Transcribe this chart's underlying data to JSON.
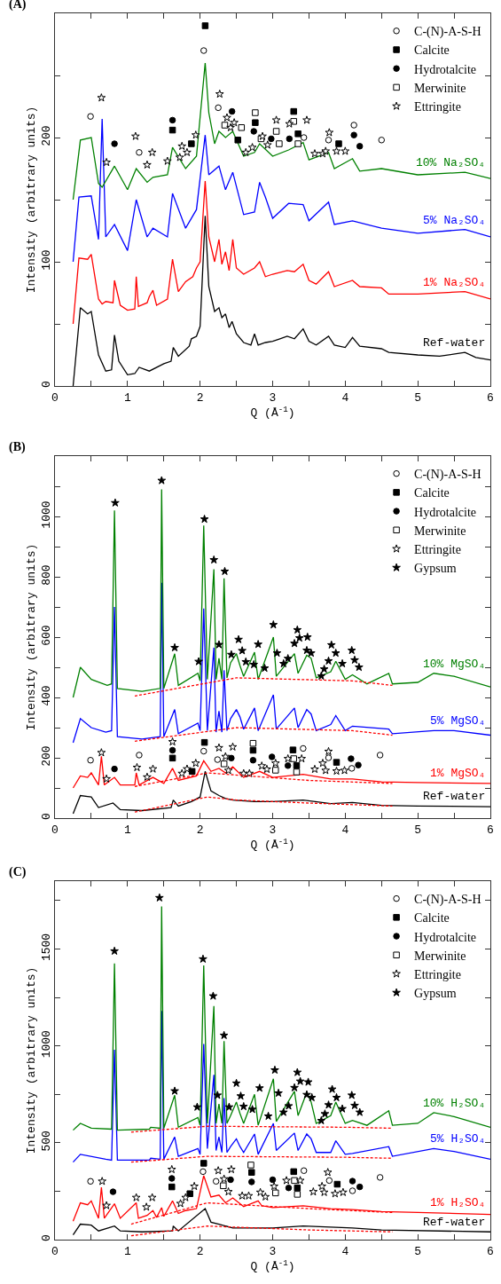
{
  "chart_data": [
    {
      "type": "line",
      "title": "(A)",
      "xlabel": "Q (Å$^{-1}$)",
      "ylabel": "Intensity (arbitrary units)",
      "xlim": [
        0,
        6
      ],
      "xticks": [
        0,
        {
          "value": 0.5,
          "label": null
        },
        1,
        {
          "value": 1.5,
          "label": null
        },
        2,
        {
          "value": 2.5,
          "label": null
        },
        3,
        {
          "value": 3.5,
          "label": null
        },
        4,
        {
          "value": 4.5,
          "label": null
        },
        5,
        {
          "value": 5.5,
          "label": null
        },
        6
      ],
      "ylim": [
        0,
        300
      ],
      "yticks": [
        0,
        {
          "value": 50,
          "label": null
        },
        100,
        {
          "value": 150,
          "label": null
        },
        200,
        {
          "value": 250,
          "label": null
        }
      ],
      "grid": false,
      "legend": "top right",
      "series": [
        {
          "name": "Ref-water",
          "color": "#000000",
          "x": [
            0.25,
            0.35,
            0.45,
            0.5,
            0.6,
            0.7,
            0.78,
            0.82,
            0.88,
            1.0,
            1.1,
            1.16,
            1.3,
            1.5,
            1.6,
            1.63,
            1.7,
            1.85,
            1.88,
            1.95,
            2.0,
            2.07,
            2.12,
            2.2,
            2.26,
            2.3,
            2.35,
            2.4,
            2.44,
            2.5,
            2.6,
            2.7,
            2.75,
            2.8,
            2.9,
            3.0,
            3.1,
            3.2,
            3.3,
            3.42,
            3.5,
            3.6,
            3.77,
            3.85,
            4.0,
            4.1,
            4.2,
            4.5,
            4.6,
            5.0,
            5.3,
            5.65,
            5.8,
            6.0
          ],
          "values": [
            0,
            63,
            58,
            60,
            25,
            12,
            13,
            41,
            20,
            9,
            10,
            15,
            12,
            18,
            20,
            31,
            24,
            32,
            38,
            40,
            48,
            137,
            80,
            60,
            63,
            55,
            58,
            47,
            52,
            42,
            35,
            33,
            42,
            33,
            35,
            36,
            38,
            40,
            38,
            46,
            36,
            33,
            40,
            33,
            31,
            39,
            32,
            30,
            27,
            25,
            24,
            27,
            23,
            21
          ]
        },
        {
          "name": "1% Na₂SO₄",
          "color": "#ff0000",
          "x": [
            0.25,
            0.33,
            0.45,
            0.5,
            0.6,
            0.65,
            0.7,
            0.8,
            0.82,
            0.9,
            1.0,
            1.1,
            1.12,
            1.15,
            1.27,
            1.3,
            1.35,
            1.4,
            1.55,
            1.62,
            1.7,
            1.8,
            1.9,
            1.95,
            2.0,
            2.07,
            2.12,
            2.2,
            2.26,
            2.3,
            2.35,
            2.4,
            2.45,
            2.5,
            2.6,
            2.75,
            2.82,
            2.9,
            3.0,
            3.2,
            3.3,
            3.42,
            3.5,
            3.6,
            3.77,
            3.85,
            4.1,
            4.2,
            4.5,
            4.6,
            5.0,
            5.65,
            6.0
          ],
          "values": [
            50,
            103,
            102,
            106,
            70,
            66,
            68,
            67,
            85,
            65,
            61,
            62,
            88,
            64,
            67,
            72,
            77,
            65,
            70,
            102,
            76,
            84,
            88,
            95,
            100,
            165,
            120,
            100,
            118,
            98,
            108,
            93,
            118,
            95,
            90,
            95,
            100,
            88,
            90,
            93,
            92,
            98,
            85,
            82,
            92,
            80,
            85,
            80,
            79,
            74,
            74,
            76,
            70
          ]
        },
        {
          "name": "5% Na₂SO₄",
          "color": "#0000ff",
          "x": [
            0.25,
            0.33,
            0.5,
            0.6,
            0.65,
            0.7,
            0.82,
            1.0,
            1.12,
            1.27,
            1.35,
            1.55,
            1.62,
            1.8,
            1.95,
            2.07,
            2.12,
            2.26,
            2.35,
            2.45,
            2.6,
            2.75,
            2.82,
            2.9,
            3.0,
            3.22,
            3.42,
            3.5,
            3.77,
            3.85,
            4.1,
            4.5,
            5.0,
            5.65,
            6.0
          ],
          "values": [
            100,
            152,
            153,
            118,
            215,
            120,
            130,
            109,
            150,
            120,
            127,
            120,
            155,
            127,
            142,
            202,
            170,
            177,
            158,
            172,
            138,
            140,
            164,
            152,
            135,
            147,
            146,
            133,
            148,
            130,
            133,
            127,
            123,
            126,
            120
          ]
        },
        {
          "name": "10% Na₂SO₄",
          "color": "#008000",
          "x": [
            0.25,
            0.35,
            0.5,
            0.6,
            0.65,
            0.82,
            1.0,
            1.12,
            1.27,
            1.35,
            1.55,
            1.62,
            1.8,
            1.95,
            2.07,
            2.12,
            2.2,
            2.26,
            2.35,
            2.45,
            2.6,
            2.75,
            2.82,
            3.0,
            3.22,
            3.42,
            3.5,
            3.77,
            3.85,
            4.1,
            4.2,
            4.5,
            5.0,
            5.65,
            6.0
          ],
          "values": [
            150,
            198,
            200,
            163,
            160,
            177,
            158,
            175,
            164,
            168,
            170,
            192,
            175,
            185,
            260,
            220,
            195,
            205,
            200,
            205,
            185,
            188,
            195,
            185,
            190,
            196,
            182,
            188,
            175,
            183,
            173,
            175,
            170,
            172,
            167
          ]
        },
        {
          "type": "scatter",
          "name": "C-(N)-A-S-H",
          "marker": "circle",
          "color": "#ffffff",
          "x": [
            0.49,
            1.16,
            2.05,
            2.25,
            3.43,
            3.77,
            4.12,
            4.5
          ],
          "values": [
            217,
            188,
            270,
            224,
            200,
            198,
            210,
            198
          ]
        },
        {
          "type": "scatter",
          "name": "Calcite",
          "marker": "square",
          "color": "#000000",
          "x": [
            1.62,
            1.88,
            2.07,
            2.52,
            2.76,
            3.29,
            3.35,
            3.91
          ],
          "values": [
            206,
            195,
            290,
            198,
            212,
            221,
            203,
            195
          ]
        },
        {
          "type": "scatter",
          "name": "Hydrotalcite",
          "marker": "circle",
          "color": "#000000",
          "x": [
            0.82,
            1.62,
            2.44,
            2.74,
            2.98,
            3.23,
            4.12,
            4.2
          ],
          "values": [
            195,
            214,
            221,
            205,
            199,
            199,
            202,
            193
          ]
        },
        {
          "type": "scatter",
          "name": "Merwinite",
          "marker": "square",
          "color": "#ffffff",
          "x": [
            2.34,
            2.57,
            2.76,
            2.84,
            3.05,
            3.09,
            3.29,
            3.35
          ],
          "values": [
            210,
            208,
            220,
            199,
            205,
            195,
            213,
            195
          ]
        },
        {
          "type": "scatter",
          "name": "Ettringite",
          "marker": "star",
          "color": "#ffffff",
          "x": [
            0.64,
            0.71,
            1.11,
            1.27,
            1.34,
            1.55,
            1.72,
            1.75,
            1.82,
            1.94,
            2.27,
            2.37,
            2.42,
            2.47,
            2.63,
            2.72,
            2.86,
            2.93,
            3.05,
            3.23,
            3.47,
            3.58,
            3.69,
            3.73,
            3.78,
            3.88,
            4.0
          ],
          "values": [
            232,
            180,
            201,
            178,
            188,
            181,
            184,
            193,
            188,
            202,
            235,
            216,
            208,
            212,
            188,
            192,
            201,
            194,
            214,
            211,
            214,
            187,
            187,
            189,
            204,
            189,
            189
          ]
        }
      ]
    },
    {
      "type": "line",
      "title": "(B)",
      "xlabel": "Q (Å$^{-1}$)",
      "ylabel": "Intensity (arbitrary units)",
      "xlim": [
        0,
        6
      ],
      "xticks": [
        0,
        {
          "value": 0.5,
          "label": null
        },
        1,
        {
          "value": 1.5,
          "label": null
        },
        2,
        {
          "value": 2.5,
          "label": null
        },
        3,
        {
          "value": 3.5,
          "label": null
        },
        4,
        {
          "value": 4.5,
          "label": null
        },
        5,
        {
          "value": 5.5,
          "label": null
        },
        6
      ],
      "ylim": [
        0,
        1200
      ],
      "yticks": [
        0,
        {
          "value": 100,
          "label": null
        },
        200,
        {
          "value": 300,
          "label": null
        },
        400,
        {
          "value": 500,
          "label": null
        },
        600,
        {
          "value": 700,
          "label": null
        },
        800,
        {
          "value": 900,
          "label": null
        },
        1000,
        {
          "value": 1100,
          "label": null
        }
      ],
      "grid": false,
      "legend": "top right",
      "series": [
        {
          "type": "line",
          "color": "#ff0000",
          "line_style": "dotted",
          "x": [
            1.1,
            2.1,
            2.5,
            3.5,
            4.65
          ],
          "values": [
            20,
            70,
            60,
            50,
            40
          ]
        },
        {
          "type": "line",
          "color": "#ff0000",
          "line_style": "dotted",
          "x": [
            1.1,
            2.1,
            3.5,
            4.65
          ],
          "values": [
            105,
            150,
            125,
            115
          ]
        },
        {
          "type": "line",
          "color": "#ff0000",
          "line_style": "dotted",
          "x": [
            1.1,
            2.5,
            4.1,
            4.65
          ],
          "values": [
            255,
            300,
            290,
            275
          ]
        },
        {
          "type": "line",
          "color": "#ff0000",
          "line_style": "dotted",
          "x": [
            1.1,
            2.5,
            4.1,
            4.65
          ],
          "values": [
            405,
            465,
            455,
            440
          ]
        },
        {
          "name": "Ref-water",
          "color": "#000000",
          "x": [
            0.25,
            0.35,
            0.45,
            0.5,
            0.6,
            0.8,
            0.9,
            1.2,
            1.6,
            1.63,
            1.7,
            1.88,
            2.0,
            2.07,
            2.15,
            2.26,
            2.35,
            2.45,
            2.75,
            3.0,
            3.42,
            3.8,
            4.1,
            4.5,
            5.0,
            6.0
          ],
          "values": [
            15,
            75,
            72,
            70,
            35,
            50,
            28,
            25,
            35,
            60,
            40,
            55,
            70,
            155,
            90,
            75,
            65,
            60,
            55,
            55,
            60,
            48,
            52,
            42,
            40,
            38
          ]
        },
        {
          "name": "1% MgSO₄",
          "color": "#ff0000",
          "x": [
            0.25,
            0.35,
            0.45,
            0.5,
            0.6,
            0.64,
            0.68,
            0.82,
            0.9,
            1.1,
            1.12,
            1.16,
            1.35,
            1.5,
            1.62,
            1.7,
            1.95,
            2.05,
            2.15,
            2.26,
            2.35,
            2.45,
            2.6,
            2.82,
            3.0,
            3.42,
            3.8,
            4.1,
            4.5,
            5.0,
            6.0
          ],
          "values": [
            100,
            140,
            135,
            150,
            110,
            205,
            110,
            135,
            110,
            110,
            150,
            110,
            135,
            115,
            165,
            125,
            140,
            190,
            155,
            165,
            150,
            170,
            135,
            155,
            135,
            145,
            130,
            130,
            120,
            118,
            115
          ]
        },
        {
          "name": "5% MgSO₄",
          "color": "#0000ff",
          "x": [
            0.25,
            0.35,
            0.5,
            0.7,
            0.78,
            0.82,
            0.86,
            1.2,
            1.45,
            1.47,
            1.5,
            1.65,
            1.7,
            1.97,
            2.0,
            2.05,
            2.1,
            2.19,
            2.22,
            2.26,
            2.3,
            2.33,
            2.37,
            2.42,
            2.5,
            2.55,
            2.6,
            2.75,
            2.8,
            3.01,
            3.05,
            3.3,
            3.35,
            3.47,
            3.53,
            3.6,
            3.8,
            3.87,
            4.0,
            4.1,
            4.6,
            4.65,
            5.22,
            5.5,
            6.0
          ],
          "values": [
            250,
            330,
            300,
            285,
            290,
            700,
            270,
            262,
            270,
            780,
            270,
            360,
            280,
            315,
            290,
            695,
            290,
            565,
            285,
            355,
            285,
            490,
            290,
            330,
            360,
            335,
            295,
            365,
            290,
            409,
            295,
            365,
            300,
            360,
            345,
            290,
            310,
            340,
            290,
            305,
            295,
            280,
            290,
            290,
            275
          ]
        },
        {
          "name": "10% MgSO₄",
          "color": "#008000",
          "x": [
            0.25,
            0.35,
            0.5,
            0.72,
            0.78,
            0.82,
            0.86,
            1.2,
            1.45,
            1.47,
            1.5,
            1.65,
            1.7,
            1.97,
            2.0,
            2.05,
            2.1,
            2.19,
            2.22,
            2.26,
            2.3,
            2.33,
            2.37,
            2.42,
            2.5,
            2.55,
            2.6,
            2.75,
            2.8,
            3.01,
            3.05,
            3.3,
            3.35,
            3.47,
            3.53,
            3.6,
            3.8,
            3.87,
            4.0,
            4.1,
            4.3,
            4.6,
            4.65,
            5.0,
            5.22,
            5.5,
            6.0
          ],
          "values": [
            400,
            500,
            460,
            440,
            445,
            1020,
            430,
            420,
            430,
            1090,
            430,
            545,
            440,
            480,
            455,
            970,
            460,
            825,
            460,
            530,
            460,
            795,
            465,
            515,
            545,
            505,
            470,
            550,
            460,
            600,
            470,
            545,
            480,
            540,
            530,
            465,
            485,
            520,
            460,
            475,
            445,
            480,
            445,
            450,
            480,
            470,
            435
          ]
        },
        {
          "type": "scatter",
          "name": "C-(N)-A-S-H",
          "marker": "circle",
          "color": "#ffffff",
          "x": [
            0.49,
            1.16,
            2.05,
            2.24,
            3.42,
            3.77,
            4.09,
            4.48
          ],
          "values": [
            192,
            209,
            222,
            194,
            231,
            200,
            165,
            209
          ]
        },
        {
          "type": "scatter",
          "name": "Calcite",
          "marker": "square",
          "color": "#000000",
          "x": [
            1.62,
            1.89,
            2.06,
            2.73,
            3.28,
            3.33,
            3.88
          ],
          "values": [
            199,
            155,
            251,
            225,
            226,
            174,
            185
          ]
        },
        {
          "type": "scatter",
          "name": "Hydrotalcite",
          "marker": "circle",
          "color": "#000000",
          "x": [
            0.82,
            1.62,
            2.43,
            2.73,
            2.99,
            3.21,
            4.08,
            4.18
          ],
          "values": [
            163,
            225,
            199,
            192,
            203,
            174,
            197,
            176
          ]
        },
        {
          "type": "scatter",
          "name": "Merwinite",
          "marker": "square",
          "color": "#ffffff",
          "x": [
            2.33,
            2.73,
            3.04,
            3.29,
            3.33
          ],
          "values": [
            180,
            248,
            159,
            197,
            153
          ]
        },
        {
          "type": "scatter",
          "name": "Ettringite",
          "marker": "star",
          "color": "#ffffff",
          "x": [
            0.64,
            0.71,
            1.13,
            1.27,
            1.35,
            1.62,
            1.75,
            1.82,
            1.94,
            2.26,
            2.35,
            2.39,
            2.45,
            2.6,
            2.68,
            2.85,
            2.92,
            3.04,
            3.21,
            3.4,
            3.58,
            3.69,
            3.73,
            3.77,
            3.88,
            3.99
          ],
          "values": [
            217,
            130,
            168,
            136,
            163,
            253,
            148,
            163,
            182,
            233,
            204,
            158,
            236,
            148,
            148,
            173,
            162,
            182,
            197,
            197,
            162,
            182,
            158,
            221,
            156,
            158
          ]
        },
        {
          "type": "scatter",
          "name": "Gypsum",
          "marker": "star",
          "color": "#000000",
          "x": [
            0.83,
            1.47,
            1.65,
            1.98,
            2.06,
            2.19,
            2.26,
            2.34,
            2.43,
            2.53,
            2.58,
            2.63,
            2.74,
            2.8,
            2.89,
            3.01,
            3.06,
            3.15,
            3.21,
            3.3,
            3.34,
            3.37,
            3.47,
            3.48,
            3.53,
            3.67,
            3.71,
            3.77,
            3.81,
            3.87,
            3.96,
            4.09,
            4.13,
            4.19
          ],
          "values": [
            1045,
            1119,
            565,
            519,
            991,
            856,
            575,
            818,
            542,
            592,
            555,
            518,
            509,
            576,
            497,
            641,
            547,
            512,
            529,
            579,
            624,
            597,
            556,
            600,
            547,
            471,
            494,
            521,
            574,
            547,
            512,
            556,
            524,
            500
          ]
        }
      ]
    },
    {
      "type": "line",
      "title": "(C)",
      "xlabel": "Q (Å$^{-1}$)",
      "ylabel": "Intensity (arbitrary units)",
      "xlim": [
        0,
        6
      ],
      "xticks": [
        0,
        {
          "value": 0.5,
          "label": null
        },
        1,
        {
          "value": 1.5,
          "label": null
        },
        2,
        {
          "value": 2.5,
          "label": null
        },
        3,
        {
          "value": 3.5,
          "label": null
        },
        4,
        {
          "value": 4.5,
          "label": null
        },
        5,
        {
          "value": 5.5,
          "label": null
        },
        6
      ],
      "ylim": [
        0,
        1850
      ],
      "yticks": [
        0,
        {
          "value": 250,
          "label": null
        },
        500,
        {
          "value": 750,
          "label": null
        },
        1000,
        {
          "value": 1250,
          "label": null
        },
        1500,
        {
          "value": 1750,
          "label": null
        }
      ],
      "grid": false,
      "legend": "top right",
      "series": [
        {
          "type": "line",
          "color": "#ff0000",
          "line_style": "dotted",
          "x": [
            1.05,
            2.1,
            3.5,
            4.65
          ],
          "values": [
            20,
            70,
            50,
            40
          ]
        },
        {
          "type": "line",
          "color": "#ff0000",
          "line_style": "dotted",
          "x": [
            1.05,
            2.1,
            3.5,
            4.65
          ],
          "values": [
            80,
            190,
            160,
            140
          ]
        },
        {
          "type": "line",
          "color": "#ff0000",
          "line_style": "dotted",
          "x": [
            1.05,
            2.1,
            4.0,
            4.65
          ],
          "values": [
            400,
            430,
            425,
            420
          ]
        },
        {
          "type": "line",
          "color": "#ff0000",
          "line_style": "dotted",
          "x": [
            1.05,
            2.1,
            4.0,
            4.65
          ],
          "values": [
            555,
            585,
            580,
            575
          ]
        },
        {
          "name": "Ref-water",
          "color": "#000000",
          "x": [
            0.25,
            0.35,
            0.5,
            0.6,
            0.82,
            0.9,
            1.2,
            1.62,
            1.63,
            1.7,
            2.07,
            2.15,
            2.26,
            2.45,
            3.0,
            3.42,
            4.1,
            4.5,
            6.0
          ],
          "values": [
            25,
            80,
            75,
            45,
            70,
            45,
            40,
            45,
            70,
            45,
            160,
            90,
            80,
            60,
            60,
            70,
            60,
            50,
            40
          ]
        },
        {
          "name": "1% H₂SO₄",
          "color": "#ff0000",
          "x": [
            0.25,
            0.35,
            0.45,
            0.5,
            0.6,
            0.64,
            0.68,
            0.82,
            0.9,
            1.12,
            1.15,
            1.27,
            1.35,
            1.4,
            1.47,
            1.5,
            1.62,
            1.7,
            1.8,
            1.95,
            2.05,
            2.15,
            2.26,
            2.35,
            2.45,
            2.6,
            2.8,
            2.85,
            3.0,
            3.42,
            3.8,
            4.1,
            4.5,
            5.0,
            6.0
          ],
          "values": [
            95,
            190,
            180,
            200,
            110,
            270,
            110,
            185,
            110,
            190,
            110,
            125,
            150,
            115,
            165,
            120,
            200,
            135,
            150,
            160,
            330,
            220,
            230,
            190,
            215,
            170,
            200,
            175,
            165,
            175,
            160,
            155,
            145,
            140,
            130
          ]
        },
        {
          "name": "5% H₂SO₄",
          "color": "#0000ff",
          "x": [
            0.25,
            0.35,
            0.7,
            0.78,
            0.82,
            0.86,
            1.3,
            1.32,
            1.45,
            1.47,
            1.5,
            1.65,
            1.7,
            1.97,
            2.0,
            2.05,
            2.1,
            2.19,
            2.22,
            2.26,
            2.3,
            2.33,
            2.37,
            2.42,
            2.5,
            2.55,
            2.6,
            2.75,
            2.8,
            3.01,
            3.05,
            3.3,
            3.35,
            3.47,
            3.53,
            3.6,
            3.8,
            3.87,
            4.0,
            4.1,
            4.6,
            4.65,
            5.22,
            5.5,
            6.0
          ],
          "values": [
            400,
            440,
            415,
            410,
            980,
            410,
            410,
            420,
            415,
            1180,
            415,
            530,
            430,
            470,
            440,
            1010,
            470,
            850,
            460,
            530,
            450,
            730,
            450,
            480,
            520,
            480,
            450,
            545,
            440,
            600,
            460,
            550,
            460,
            545,
            520,
            450,
            450,
            510,
            440,
            445,
            480,
            430,
            470,
            455,
            415
          ]
        },
        {
          "name": "10% H₂SO₄",
          "color": "#008000",
          "x": [
            0.25,
            0.35,
            0.5,
            0.78,
            0.82,
            0.86,
            1.3,
            1.32,
            1.45,
            1.47,
            1.5,
            1.65,
            1.7,
            1.97,
            2.0,
            2.05,
            2.1,
            2.19,
            2.22,
            2.26,
            2.3,
            2.33,
            2.37,
            2.42,
            2.5,
            2.55,
            2.6,
            2.75,
            2.8,
            3.01,
            3.05,
            3.3,
            3.35,
            3.47,
            3.53,
            3.6,
            3.8,
            3.87,
            4.0,
            4.1,
            4.3,
            4.6,
            4.65,
            5.0,
            5.22,
            5.5,
            6.0
          ],
          "values": [
            565,
            600,
            575,
            570,
            1425,
            565,
            570,
            580,
            575,
            1720,
            575,
            745,
            580,
            630,
            590,
            1415,
            600,
            1205,
            600,
            700,
            600,
            1025,
            600,
            640,
            710,
            650,
            600,
            750,
            590,
            830,
            610,
            765,
            640,
            760,
            710,
            600,
            640,
            710,
            600,
            615,
            590,
            665,
            590,
            600,
            655,
            635,
            580
          ]
        },
        {
          "type": "scatter",
          "name": "C-(N)-A-S-H",
          "marker": "circle",
          "color": "#ffffff",
          "x": [
            0.49,
            2.04,
            2.22,
            3.43,
            3.78,
            4.1,
            4.48
          ],
          "values": [
            301,
            351,
            301,
            356,
            305,
            252,
            321
          ]
        },
        {
          "type": "scatter",
          "name": "Calcite",
          "marker": "square",
          "color": "#000000",
          "x": [
            1.61,
            1.86,
            2.05,
            2.71,
            3.29,
            3.34,
            3.89
          ],
          "values": [
            272,
            237,
            394,
            347,
            351,
            267,
            286
          ]
        },
        {
          "type": "scatter",
          "name": "Hydrotalcite",
          "marker": "circle",
          "color": "#000000",
          "x": [
            0.8,
            1.61,
            2.42,
            2.71,
            3.0,
            3.22,
            4.1,
            4.2
          ],
          "values": [
            247,
            316,
            309,
            298,
            309,
            267,
            302,
            272
          ]
        },
        {
          "type": "scatter",
          "name": "Merwinite",
          "marker": "square",
          "color": "#ffffff",
          "x": [
            2.32,
            2.7,
            3.04,
            3.3,
            3.34
          ],
          "values": [
            278,
            385,
            241,
            305,
            234
          ]
        },
        {
          "type": "scatter",
          "name": "Ettringite",
          "marker": "star",
          "color": "#ffffff",
          "x": [
            0.65,
            0.71,
            1.12,
            1.26,
            1.34,
            1.61,
            1.73,
            1.8,
            1.92,
            2.25,
            2.33,
            2.39,
            2.43,
            2.58,
            2.67,
            2.83,
            2.9,
            3.02,
            3.19,
            3.38,
            3.56,
            3.68,
            3.71,
            3.76,
            3.86,
            3.97
          ],
          "values": [
            301,
            176,
            217,
            168,
            217,
            362,
            186,
            217,
            275,
            356,
            313,
            247,
            362,
            226,
            226,
            244,
            221,
            275,
            305,
            305,
            247,
            275,
            244,
            347,
            237,
            244
          ]
        },
        {
          "type": "scatter",
          "name": "Gypsum",
          "marker": "star",
          "color": "#000000",
          "x": [
            0.82,
            1.44,
            1.65,
            1.96,
            2.04,
            2.18,
            2.24,
            2.33,
            2.4,
            2.5,
            2.56,
            2.6,
            2.72,
            2.82,
            2.94,
            3.03,
            3.08,
            3.15,
            3.22,
            3.3,
            3.34,
            3.38,
            3.47,
            3.49,
            3.54,
            3.67,
            3.72,
            3.77,
            3.82,
            3.88,
            3.96,
            4.09,
            4.13,
            4.2
          ],
          "values": [
            1489,
            1764,
            767,
            684,
            1448,
            1257,
            745,
            1054,
            684,
            807,
            741,
            687,
            672,
            782,
            637,
            875,
            756,
            657,
            690,
            784,
            863,
            817,
            748,
            813,
            733,
            614,
            649,
            695,
            776,
            733,
            675,
            745,
            692,
            657
          ]
        }
      ]
    }
  ]
}
